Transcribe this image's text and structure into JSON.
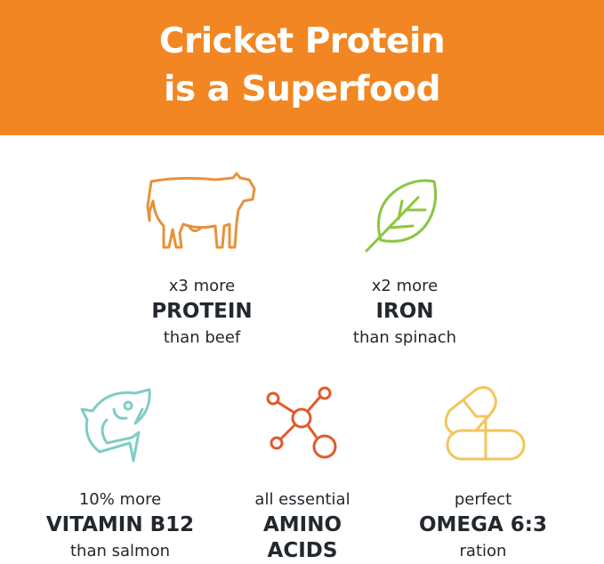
{
  "header": {
    "title_line1": "Cricket Protein",
    "title_line2": "is a Superfood",
    "background_color": "#f28622"
  },
  "items": [
    {
      "icon": "cow-icon",
      "color": "#e8913a",
      "pre": "x3 more",
      "big": "PROTEIN",
      "post": "than beef"
    },
    {
      "icon": "leaf-icon",
      "color": "#8cc63f",
      "pre": "x2 more",
      "big": "IRON",
      "post": "than spinach"
    },
    {
      "icon": "fish-icon",
      "color": "#7ecdc4",
      "pre": "10% more",
      "big": "VITAMIN B12",
      "post": "than salmon"
    },
    {
      "icon": "molecule-icon",
      "color": "#e05a2b",
      "pre": "all essential",
      "big": "AMINO",
      "post": "ACIDS"
    },
    {
      "icon": "capsules-icon",
      "color": "#f2c65a",
      "pre": "perfect",
      "big": "OMEGA 6:3",
      "post": "ration"
    }
  ]
}
